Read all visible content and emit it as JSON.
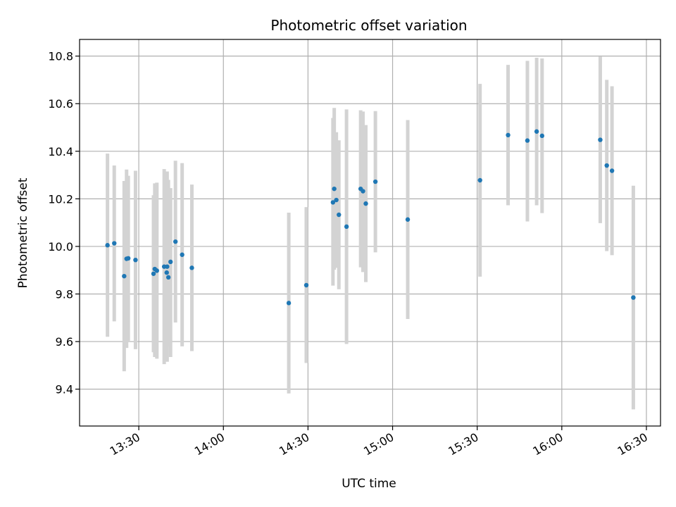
{
  "chart_data": {
    "type": "scatter",
    "title": "Photometric offset variation",
    "xlabel": "UTC time",
    "ylabel": "Photometric offset",
    "xlim": [
      "13:09",
      "16:35"
    ],
    "ylim": [
      9.245,
      10.87
    ],
    "grid": true,
    "x_ticks": [
      "13:30",
      "14:00",
      "14:30",
      "15:00",
      "15:30",
      "16:00",
      "16:30"
    ],
    "y_ticks": [
      9.4,
      9.6,
      9.8,
      10.0,
      10.2,
      10.4,
      10.6,
      10.8
    ],
    "colors": {
      "point": "#1f77b4",
      "errorbar": "#d3d3d3",
      "grid": "#b0b0b0"
    },
    "points": [
      {
        "t": "13:18:54",
        "y": 10.005,
        "lo": 9.62,
        "hi": 10.39
      },
      {
        "t": "13:21:18",
        "y": 10.013,
        "lo": 9.685,
        "hi": 10.34
      },
      {
        "t": "13:24:49",
        "y": 9.875,
        "lo": 9.475,
        "hi": 10.275
      },
      {
        "t": "13:25:40",
        "y": 9.948,
        "lo": 9.573,
        "hi": 10.323
      },
      {
        "t": "13:26:16",
        "y": 9.95,
        "lo": 9.603,
        "hi": 10.297
      },
      {
        "t": "13:28:50",
        "y": 9.943,
        "lo": 9.568,
        "hi": 10.318
      },
      {
        "t": "13:35:13",
        "y": 9.885,
        "lo": 9.555,
        "hi": 10.215
      },
      {
        "t": "13:35:40",
        "y": 9.905,
        "lo": 9.535,
        "hi": 10.265
      },
      {
        "t": "13:36:25",
        "y": 9.898,
        "lo": 9.528,
        "hi": 10.268
      },
      {
        "t": "13:39:00",
        "y": 9.915,
        "lo": 9.505,
        "hi": 10.325
      },
      {
        "t": "13:39:54",
        "y": 9.89,
        "lo": 9.54,
        "hi": 10.24
      },
      {
        "t": "13:40:03",
        "y": 9.915,
        "lo": 9.515,
        "hi": 10.315
      },
      {
        "t": "13:40:30",
        "y": 9.87,
        "lo": 9.58,
        "hi": 10.28
      },
      {
        "t": "13:41:16",
        "y": 9.935,
        "lo": 9.535,
        "hi": 10.245
      },
      {
        "t": "13:43:00",
        "y": 10.02,
        "lo": 9.68,
        "hi": 10.36
      },
      {
        "t": "13:45:22",
        "y": 9.965,
        "lo": 9.58,
        "hi": 10.35
      },
      {
        "t": "13:48:49",
        "y": 9.91,
        "lo": 9.56,
        "hi": 10.26
      },
      {
        "t": "14:23:11",
        "y": 9.762,
        "lo": 9.382,
        "hi": 10.142
      },
      {
        "t": "14:29:24",
        "y": 9.837,
        "lo": 9.51,
        "hi": 10.165
      },
      {
        "t": "14:38:51",
        "y": 10.185,
        "lo": 9.835,
        "hi": 10.54
      },
      {
        "t": "14:39:18",
        "y": 10.242,
        "lo": 9.902,
        "hi": 10.582
      },
      {
        "t": "14:40:03",
        "y": 10.195,
        "lo": 9.91,
        "hi": 10.48
      },
      {
        "t": "14:40:57",
        "y": 10.133,
        "lo": 9.82,
        "hi": 10.446
      },
      {
        "t": "14:43:40",
        "y": 10.083,
        "lo": 9.59,
        "hi": 10.576
      },
      {
        "t": "14:48:40",
        "y": 10.242,
        "lo": 9.912,
        "hi": 10.572
      },
      {
        "t": "14:49:30",
        "y": 10.232,
        "lo": 9.892,
        "hi": 10.567
      },
      {
        "t": "14:50:30",
        "y": 10.18,
        "lo": 9.85,
        "hi": 10.51
      },
      {
        "t": "14:53:54",
        "y": 10.272,
        "lo": 9.975,
        "hi": 10.569
      },
      {
        "t": "15:05:22",
        "y": 10.113,
        "lo": 9.695,
        "hi": 10.531
      },
      {
        "t": "15:31:00",
        "y": 10.278,
        "lo": 9.873,
        "hi": 10.683
      },
      {
        "t": "15:40:57",
        "y": 10.468,
        "lo": 10.173,
        "hi": 10.763
      },
      {
        "t": "15:47:48",
        "y": 10.445,
        "lo": 10.105,
        "hi": 10.78
      },
      {
        "t": "15:51:05",
        "y": 10.483,
        "lo": 10.173,
        "hi": 10.793
      },
      {
        "t": "15:53:00",
        "y": 10.465,
        "lo": 10.14,
        "hi": 10.79
      },
      {
        "t": "16:13:38",
        "y": 10.448,
        "lo": 10.098,
        "hi": 10.798
      },
      {
        "t": "16:15:57",
        "y": 10.34,
        "lo": 9.98,
        "hi": 10.7
      },
      {
        "t": "16:17:48",
        "y": 10.318,
        "lo": 9.963,
        "hi": 10.673
      },
      {
        "t": "16:25:22",
        "y": 9.785,
        "lo": 9.315,
        "hi": 10.255
      }
    ]
  }
}
